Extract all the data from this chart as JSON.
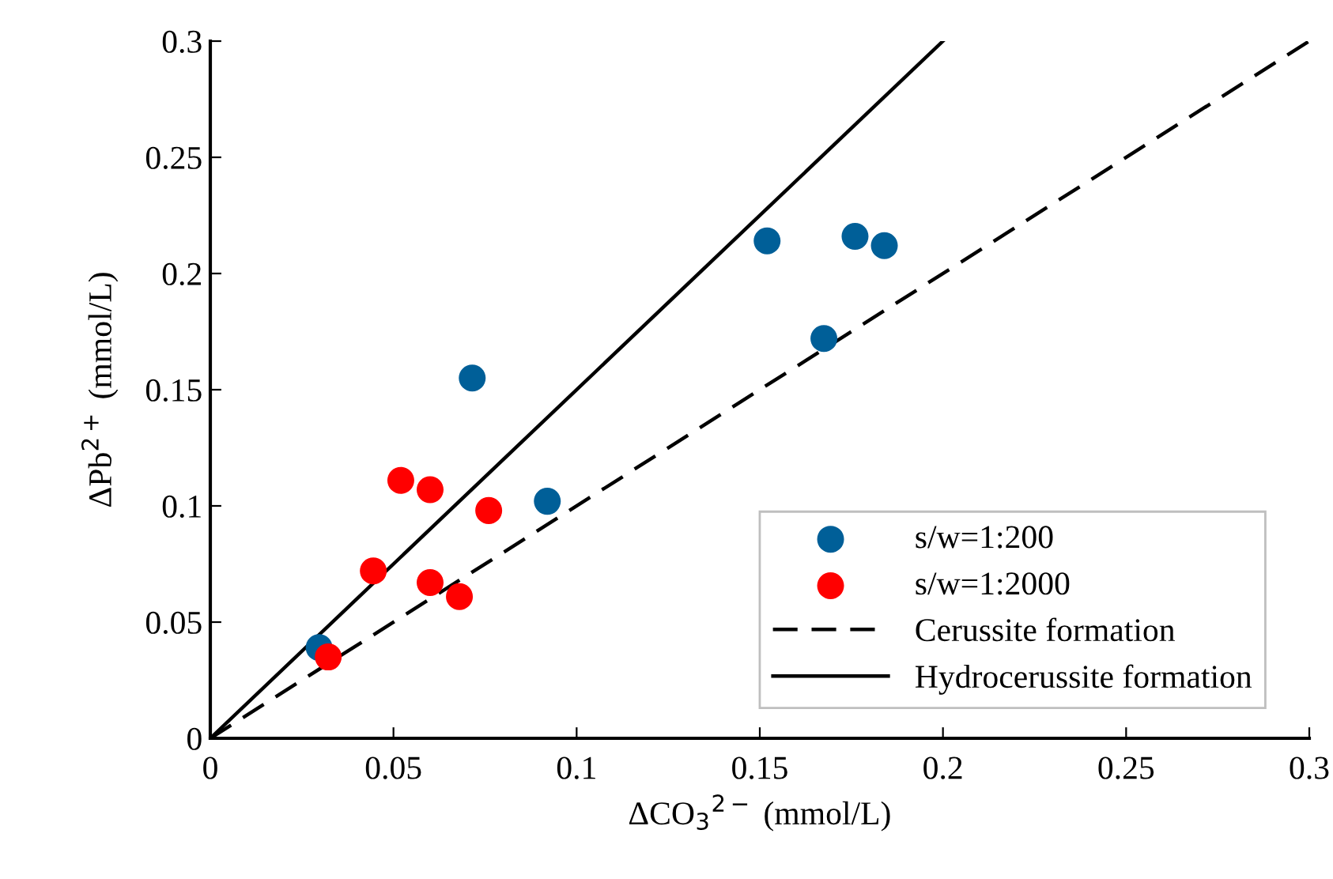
{
  "chart_data": {
    "type": "scatter",
    "xlabel": "ΔCO$_{3}$$^{2−}$ (mmol/L)",
    "ylabel": "ΔPb$^{2+}$ (mmol/L)",
    "xlim": [
      0,
      0.3
    ],
    "ylim": [
      0,
      0.3
    ],
    "xticks": [
      0,
      0.05,
      0.1,
      0.15,
      0.2,
      0.25,
      0.3
    ],
    "yticks": [
      0,
      0.05,
      0.1,
      0.15,
      0.2,
      0.25,
      0.3
    ],
    "grid": false,
    "legend": "bottom right",
    "marker": "circle",
    "series": [
      {
        "name": "s/w=1:200",
        "color": "#005f98",
        "x": [
          0.0297,
          0.0715,
          0.092,
          0.152,
          0.1675,
          0.176,
          0.184
        ],
        "values": [
          0.039,
          0.155,
          0.102,
          0.214,
          0.172,
          0.216,
          0.212
        ]
      },
      {
        "name": "s/w=1:2000",
        "color": "#ff0000",
        "x": [
          0.0322,
          0.0445,
          0.052,
          0.06,
          0.06,
          0.068,
          0.076
        ],
        "values": [
          0.035,
          0.072,
          0.111,
          0.107,
          0.067,
          0.061,
          0.098
        ]
      },
      {
        "name": "Cerussite formation",
        "color": "#000000",
        "type": "line",
        "line_style": "dashed",
        "marker": "none",
        "x": [
          0,
          0.3
        ],
        "values": [
          0,
          0.3
        ]
      },
      {
        "name": "Hydrocerussite formation",
        "color": "#000000",
        "type": "line",
        "line_style": "solid",
        "marker": "none",
        "x": [
          0,
          0.2
        ],
        "values": [
          0,
          0.3
        ]
      }
    ]
  }
}
